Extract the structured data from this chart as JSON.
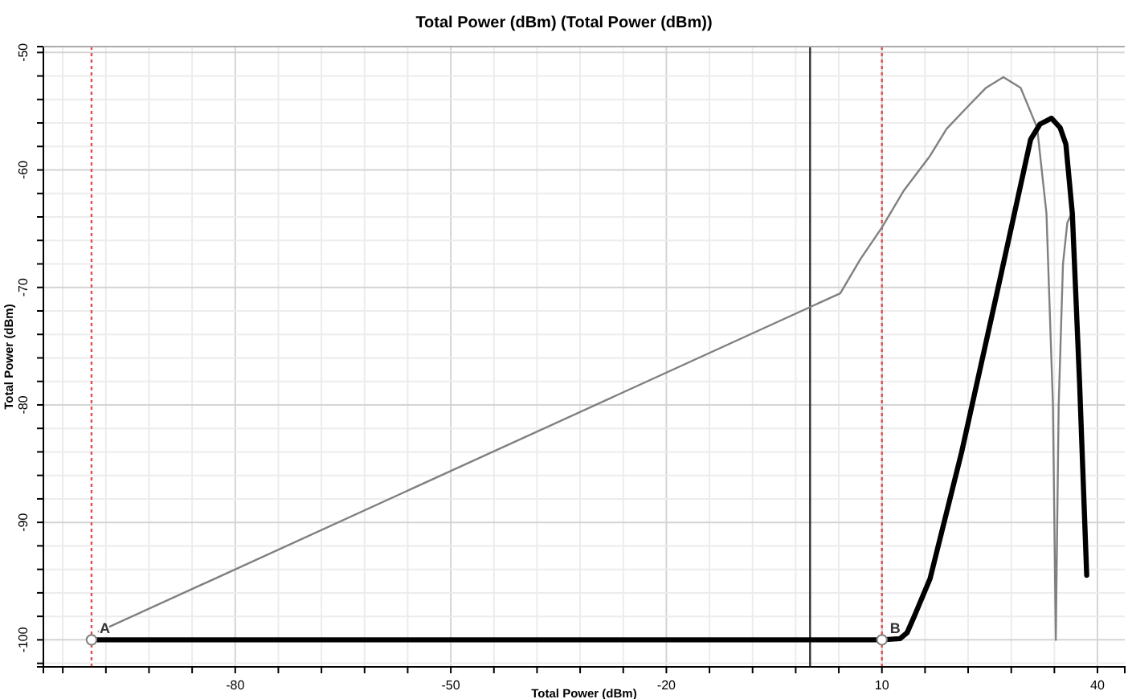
{
  "chart_data": {
    "type": "line",
    "title": "Total Power (dBm) (Total Power (dBm))",
    "xlabel": "Total Power (dBm)",
    "ylabel": "Total Power (dBm)",
    "xlim": [
      -106.7,
      43.8
    ],
    "ylim": [
      -102.3,
      -49.5
    ],
    "xticks": [
      {
        "value": -104,
        "label": null
      },
      {
        "value": -98,
        "label": null
      },
      {
        "value": -92,
        "label": null
      },
      {
        "value": -86,
        "label": null
      },
      -80,
      {
        "value": -74,
        "label": null
      },
      {
        "value": -68,
        "label": null
      },
      {
        "value": -62,
        "label": null
      },
      {
        "value": -56,
        "label": null
      },
      -50,
      {
        "value": -44,
        "label": null
      },
      {
        "value": -38,
        "label": null
      },
      {
        "value": -32,
        "label": null
      },
      {
        "value": -26,
        "label": null
      },
      -20,
      {
        "value": -14,
        "label": null
      },
      {
        "value": -8,
        "label": null
      },
      {
        "value": -2,
        "label": null
      },
      {
        "value": 4,
        "label": null
      },
      10,
      {
        "value": 16,
        "label": null
      },
      {
        "value": 22,
        "label": null
      },
      {
        "value": 28,
        "label": null
      },
      {
        "value": 34,
        "label": null
      },
      40
    ],
    "yticks": [
      {
        "value": -102,
        "label": null
      },
      -100,
      {
        "value": -98,
        "label": null
      },
      {
        "value": -96,
        "label": null
      },
      {
        "value": -94,
        "label": null
      },
      {
        "value": -92,
        "label": null
      },
      -90,
      {
        "value": -88,
        "label": null
      },
      {
        "value": -86,
        "label": null
      },
      {
        "value": -84,
        "label": null
      },
      {
        "value": -82,
        "label": null
      },
      -80,
      {
        "value": -78,
        "label": null
      },
      {
        "value": -76,
        "label": null
      },
      {
        "value": -74,
        "label": null
      },
      {
        "value": -72,
        "label": null
      },
      -70,
      {
        "value": -68,
        "label": null
      },
      {
        "value": -66,
        "label": null
      },
      {
        "value": -64,
        "label": null
      },
      {
        "value": -62,
        "label": null
      },
      -60,
      {
        "value": -58,
        "label": null
      },
      {
        "value": -56,
        "label": null
      },
      {
        "value": -54,
        "label": null
      },
      {
        "value": -52,
        "label": null
      },
      -50
    ],
    "grid": true,
    "series": [
      {
        "color": "#808080",
        "x": [
          -99,
          4.2,
          7,
          10,
          13,
          16.7,
          19,
          21.8,
          24.5,
          26.9,
          29.3,
          31.6,
          32.9,
          33.8,
          34.2,
          34.6,
          35.2,
          35.8,
          36.4
        ],
        "values": [
          -99.3,
          -70.5,
          -67.6,
          -64.9,
          -61.8,
          -58.8,
          -56.5,
          -54.7,
          -53,
          -52.1,
          -53,
          -56.4,
          -63.7,
          -80,
          -100,
          -80,
          -68,
          -64.5,
          -63.7
        ]
      },
      {
        "color": "#000000",
        "x": [
          -100,
          10,
          12.5,
          13.5,
          14.5,
          16.7,
          21.1,
          26,
          30.7,
          32,
          33.6,
          34.8,
          35.6,
          36.5,
          37.5,
          38.5
        ],
        "values": [
          -100,
          -100,
          -99.9,
          -99.4,
          -98,
          -94.8,
          -84,
          -70.5,
          -57.4,
          -56.1,
          -55.6,
          -56.4,
          -57.8,
          -63.7,
          -78,
          -94.5
        ]
      },
      {
        "type": "scatter",
        "marker": "circle",
        "color": "#808080",
        "x": [
          -100,
          10
        ],
        "values": [
          -100,
          -100
        ]
      }
    ],
    "ref_lines": [
      {
        "axis": "x",
        "value": -100,
        "color": "#e05050",
        "line_style": "dotted"
      },
      {
        "axis": "x",
        "value": 10,
        "color": "#e05050",
        "line_style": "dotted"
      },
      {
        "axis": "x",
        "value": 0,
        "color": "#333333",
        "line_style": "solid"
      }
    ],
    "annotations": [
      {
        "text": "A",
        "x": -100,
        "y": -100
      },
      {
        "text": "B",
        "x": 10,
        "y": -100
      }
    ]
  }
}
